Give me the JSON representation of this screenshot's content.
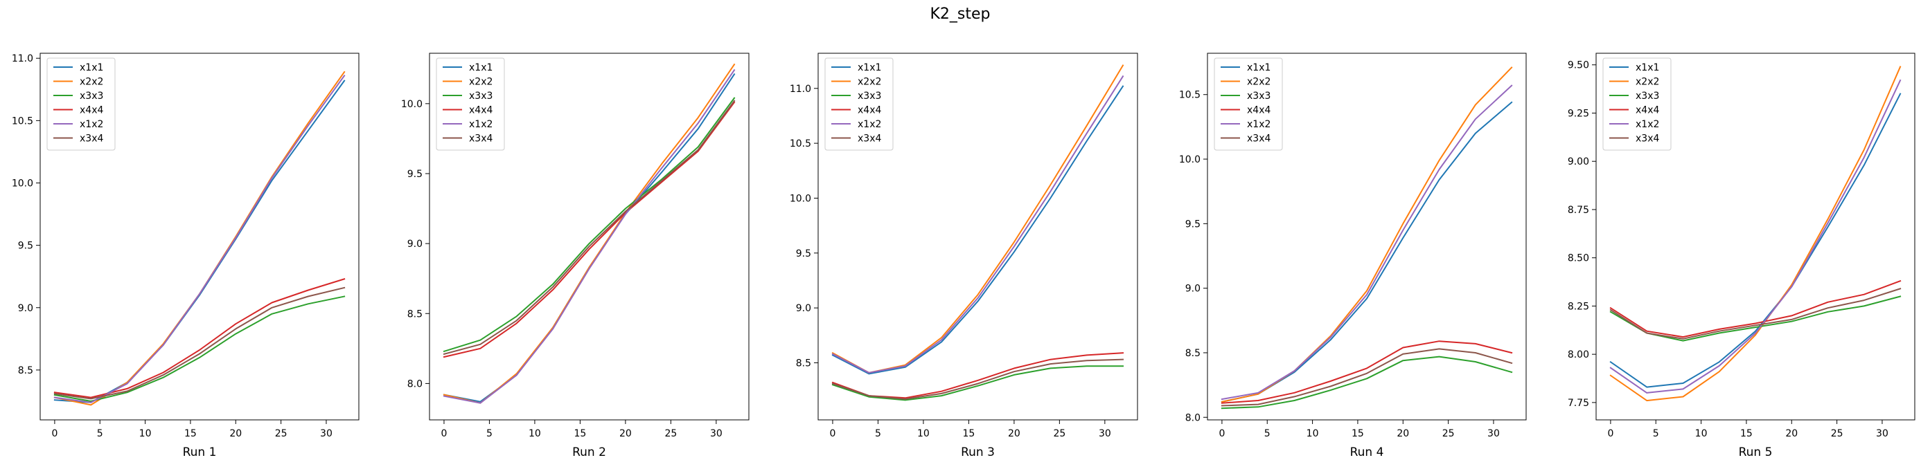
{
  "figure": {
    "title": "K2_step"
  },
  "colors": {
    "x1x1": "#1f77b4",
    "x2x2": "#ff7f0e",
    "x3x3": "#2ca02c",
    "x4x4": "#d62728",
    "x1x2": "#9467bd",
    "x3x4": "#8c564b"
  },
  "chart_data": [
    {
      "type": "line",
      "xlabel": "Run 1",
      "x": [
        0,
        4,
        8,
        12,
        16,
        20,
        24,
        28,
        32
      ],
      "xticks": [
        0,
        5,
        10,
        15,
        20,
        25,
        30
      ],
      "xlim": [
        -1.6,
        33.6
      ],
      "ylim": [
        8.1,
        11.04
      ],
      "yticks": [
        "8.5",
        "9.0",
        "9.5",
        "10.0",
        "10.5",
        "11.0"
      ],
      "legend": "upper left",
      "series": [
        {
          "name": "x1x1",
          "values": [
            8.26,
            8.24,
            8.4,
            8.7,
            9.1,
            9.55,
            10.02,
            10.42,
            10.82
          ]
        },
        {
          "name": "x2x2",
          "values": [
            8.28,
            8.22,
            8.4,
            8.71,
            9.11,
            9.57,
            10.05,
            10.48,
            10.89
          ]
        },
        {
          "name": "x3x3",
          "values": [
            8.3,
            8.25,
            8.32,
            8.44,
            8.6,
            8.79,
            8.95,
            9.03,
            9.09
          ]
        },
        {
          "name": "x4x4",
          "values": [
            8.32,
            8.28,
            8.35,
            8.48,
            8.66,
            8.87,
            9.04,
            9.14,
            9.23
          ]
        },
        {
          "name": "x1x2",
          "values": [
            8.28,
            8.24,
            8.39,
            8.7,
            9.11,
            9.56,
            10.04,
            10.46,
            10.86
          ]
        },
        {
          "name": "x3x4",
          "values": [
            8.31,
            8.27,
            8.33,
            8.46,
            8.63,
            8.83,
            9.0,
            9.09,
            9.16
          ]
        }
      ]
    },
    {
      "type": "line",
      "xlabel": "Run 2",
      "x": [
        0,
        4,
        8,
        12,
        16,
        20,
        24,
        28,
        32
      ],
      "xticks": [
        0,
        5,
        10,
        15,
        20,
        25,
        30
      ],
      "xlim": [
        -1.6,
        33.6
      ],
      "ylim": [
        7.74,
        10.36
      ],
      "yticks": [
        "8.0",
        "8.5",
        "9.0",
        "9.5",
        "10.0"
      ],
      "legend": "upper left",
      "series": [
        {
          "name": "x1x1",
          "values": [
            7.92,
            7.87,
            8.06,
            8.4,
            8.83,
            9.21,
            9.51,
            9.82,
            10.21
          ]
        },
        {
          "name": "x2x2",
          "values": [
            7.92,
            7.86,
            8.07,
            8.4,
            8.83,
            9.22,
            9.57,
            9.9,
            10.28
          ]
        },
        {
          "name": "x3x3",
          "values": [
            8.23,
            8.31,
            8.48,
            8.71,
            9.0,
            9.25,
            9.46,
            9.69,
            10.04
          ]
        },
        {
          "name": "x4x4",
          "values": [
            8.19,
            8.25,
            8.43,
            8.67,
            8.96,
            9.22,
            9.44,
            9.66,
            10.01
          ]
        },
        {
          "name": "x1x2",
          "values": [
            7.91,
            7.86,
            8.06,
            8.39,
            8.82,
            9.21,
            9.54,
            9.86,
            10.24
          ]
        },
        {
          "name": "x3x4",
          "values": [
            8.21,
            8.28,
            8.45,
            8.69,
            8.98,
            9.23,
            9.45,
            9.67,
            10.02
          ]
        }
      ]
    },
    {
      "type": "line",
      "xlabel": "Run 3",
      "x": [
        0,
        4,
        8,
        12,
        16,
        20,
        24,
        28,
        32
      ],
      "xticks": [
        0,
        5,
        10,
        15,
        20,
        25,
        30
      ],
      "xlim": [
        -1.6,
        33.6
      ],
      "ylim": [
        7.98,
        11.32
      ],
      "yticks": [
        "8.5",
        "9.0",
        "9.5",
        "10.0",
        "10.5",
        "11.0"
      ],
      "legend": "upper left",
      "series": [
        {
          "name": "x1x1",
          "values": [
            8.57,
            8.4,
            8.46,
            8.69,
            9.06,
            9.51,
            10.0,
            10.52,
            11.02
          ]
        },
        {
          "name": "x2x2",
          "values": [
            8.59,
            8.41,
            8.48,
            8.73,
            9.12,
            9.6,
            10.12,
            10.66,
            11.21
          ]
        },
        {
          "name": "x3x3",
          "values": [
            8.3,
            8.19,
            8.16,
            8.2,
            8.29,
            8.39,
            8.45,
            8.47,
            8.47
          ]
        },
        {
          "name": "x4x4",
          "values": [
            8.32,
            8.2,
            8.18,
            8.24,
            8.34,
            8.45,
            8.53,
            8.57,
            8.59
          ]
        },
        {
          "name": "x1x2",
          "values": [
            8.58,
            8.41,
            8.47,
            8.71,
            9.09,
            9.56,
            10.06,
            10.59,
            11.11
          ]
        },
        {
          "name": "x3x4",
          "values": [
            8.31,
            8.2,
            8.17,
            8.22,
            8.31,
            8.42,
            8.49,
            8.52,
            8.53
          ]
        }
      ]
    },
    {
      "type": "line",
      "xlabel": "Run 4",
      "x": [
        0,
        4,
        8,
        12,
        16,
        20,
        24,
        28,
        32
      ],
      "xticks": [
        0,
        5,
        10,
        15,
        20,
        25,
        30
      ],
      "xlim": [
        -1.6,
        33.6
      ],
      "ylim": [
        7.98,
        10.82
      ],
      "yticks": [
        "8.0",
        "8.5",
        "9.0",
        "9.5",
        "10.0",
        "10.5"
      ],
      "legend": "upper left",
      "series": [
        {
          "name": "x1x1",
          "values": [
            8.12,
            8.18,
            8.35,
            8.6,
            8.92,
            9.39,
            9.84,
            10.2,
            10.44
          ]
        },
        {
          "name": "x2x2",
          "values": [
            8.12,
            8.18,
            8.36,
            8.63,
            8.98,
            9.5,
            9.99,
            10.42,
            10.71
          ]
        },
        {
          "name": "x3x3",
          "values": [
            8.07,
            8.08,
            8.13,
            8.21,
            8.3,
            8.44,
            8.47,
            8.43,
            8.35
          ]
        },
        {
          "name": "x4x4",
          "values": [
            8.11,
            8.13,
            8.19,
            8.28,
            8.38,
            8.54,
            8.59,
            8.57,
            8.5
          ]
        },
        {
          "name": "x1x2",
          "values": [
            8.14,
            8.19,
            8.36,
            8.62,
            8.95,
            9.45,
            9.92,
            10.31,
            10.57
          ]
        },
        {
          "name": "x3x4",
          "values": [
            8.09,
            8.1,
            8.16,
            8.24,
            8.34,
            8.49,
            8.53,
            8.5,
            8.42
          ]
        }
      ]
    },
    {
      "type": "line",
      "xlabel": "Run 5",
      "x": [
        0,
        4,
        8,
        12,
        16,
        20,
        24,
        28,
        32
      ],
      "xticks": [
        0,
        5,
        10,
        15,
        20,
        25,
        30
      ],
      "xlim": [
        -1.6,
        33.6
      ],
      "ylim": [
        7.66,
        9.56
      ],
      "yticks": [
        "7.75",
        "8.00",
        "8.25",
        "8.50",
        "8.75",
        "9.00",
        "9.25",
        "9.50"
      ],
      "legend": "upper left",
      "series": [
        {
          "name": "x1x1",
          "values": [
            7.96,
            7.83,
            7.85,
            7.96,
            8.12,
            8.35,
            8.66,
            8.98,
            9.35
          ]
        },
        {
          "name": "x2x2",
          "values": [
            7.89,
            7.76,
            7.78,
            7.91,
            8.1,
            8.36,
            8.7,
            9.06,
            9.49
          ]
        },
        {
          "name": "x3x3",
          "values": [
            8.22,
            8.11,
            8.07,
            8.11,
            8.14,
            8.17,
            8.22,
            8.25,
            8.3
          ]
        },
        {
          "name": "x4x4",
          "values": [
            8.24,
            8.12,
            8.09,
            8.13,
            8.16,
            8.2,
            8.27,
            8.31,
            8.38
          ]
        },
        {
          "name": "x1x2",
          "values": [
            7.93,
            7.8,
            7.82,
            7.94,
            8.11,
            8.35,
            8.68,
            9.02,
            9.42
          ]
        },
        {
          "name": "x3x4",
          "values": [
            8.23,
            8.11,
            8.08,
            8.12,
            8.15,
            8.18,
            8.24,
            8.28,
            8.34
          ]
        }
      ]
    }
  ]
}
